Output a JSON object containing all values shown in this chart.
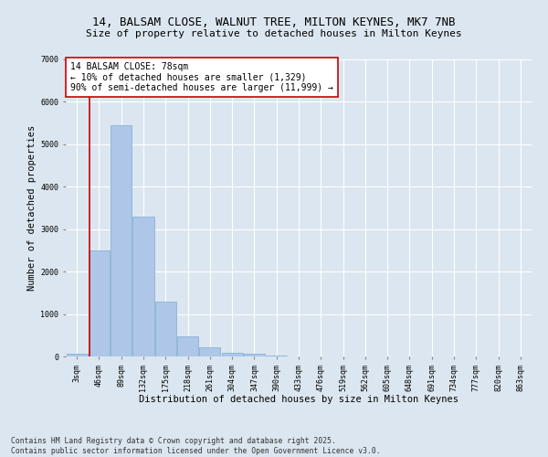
{
  "title_line1": "14, BALSAM CLOSE, WALNUT TREE, MILTON KEYNES, MK7 7NB",
  "title_line2": "Size of property relative to detached houses in Milton Keynes",
  "xlabel": "Distribution of detached houses by size in Milton Keynes",
  "ylabel": "Number of detached properties",
  "categories": [
    "3sqm",
    "46sqm",
    "89sqm",
    "132sqm",
    "175sqm",
    "218sqm",
    "261sqm",
    "304sqm",
    "347sqm",
    "390sqm",
    "433sqm",
    "476sqm",
    "519sqm",
    "562sqm",
    "605sqm",
    "648sqm",
    "691sqm",
    "734sqm",
    "777sqm",
    "820sqm",
    "863sqm"
  ],
  "values": [
    75,
    2500,
    5450,
    3300,
    1300,
    480,
    220,
    95,
    55,
    30,
    0,
    0,
    0,
    0,
    0,
    0,
    0,
    0,
    0,
    0,
    0
  ],
  "bar_color": "#aec6e8",
  "bar_edge_color": "#7aaed4",
  "vline_color": "#cc0000",
  "vline_x": 0.57,
  "annotation_text": "14 BALSAM CLOSE: 78sqm\n← 10% of detached houses are smaller (1,329)\n90% of semi-detached houses are larger (11,999) →",
  "annotation_box_color": "#ffffff",
  "annotation_box_edge": "#cc0000",
  "ylim": [
    0,
    7000
  ],
  "yticks": [
    0,
    1000,
    2000,
    3000,
    4000,
    5000,
    6000,
    7000
  ],
  "background_color": "#dce6f0",
  "grid_color": "#ffffff",
  "footer_line1": "Contains HM Land Registry data © Crown copyright and database right 2025.",
  "footer_line2": "Contains public sector information licensed under the Open Government Licence v3.0.",
  "title_fontsize": 9,
  "subtitle_fontsize": 8,
  "axis_label_fontsize": 7.5,
  "tick_fontsize": 6,
  "annotation_fontsize": 7,
  "footer_fontsize": 5.8
}
